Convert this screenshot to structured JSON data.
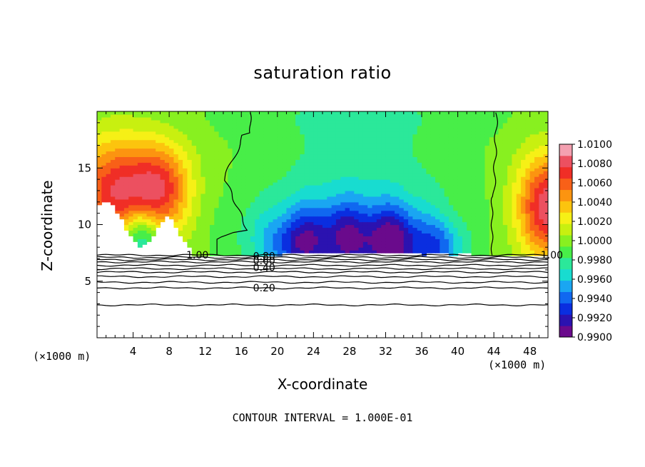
{
  "chart_data": {
    "type": "heatmap",
    "title": "saturation ratio",
    "xlabel": "X-coordinate",
    "ylabel": "Z-coordinate",
    "x_unit_left": "(×1000 m)",
    "x_unit_right": "(×1000 m)",
    "xlim": [
      0,
      50
    ],
    "ylim": [
      0,
      20
    ],
    "x_ticks": [
      4,
      8,
      12,
      16,
      20,
      24,
      28,
      32,
      36,
      40,
      44,
      48
    ],
    "y_ticks": [
      5,
      10,
      15
    ],
    "colorbar": {
      "range": [
        0.99,
        1.01
      ],
      "ticks": [
        "1.0100",
        "1.0080",
        "1.0060",
        "1.0040",
        "1.0020",
        "1.0000",
        "0.9980",
        "0.9960",
        "0.9940",
        "0.9920",
        "0.9900"
      ],
      "colors": [
        "#6a0a8c",
        "#2b12b0",
        "#0a2ee0",
        "#1068f0",
        "#1aa6f2",
        "#18dcd0",
        "#2be89a",
        "#48ee48",
        "#88f020",
        "#c8f010",
        "#f6f016",
        "#fcc40e",
        "#fc9410",
        "#f86018",
        "#f02e26",
        "#ec5060",
        "#f4a0b0"
      ]
    },
    "contour_lines": [
      {
        "level": 1.0,
        "label": "1.00"
      },
      {
        "level": 0.8,
        "label": "0.80"
      },
      {
        "level": 0.6,
        "label": "0.60"
      },
      {
        "level": 0.4,
        "label": "0.40"
      },
      {
        "level": 0.2,
        "label": "0.20"
      }
    ],
    "contour_interval": "CONTOUR INTERVAL = 1.000E-01"
  }
}
